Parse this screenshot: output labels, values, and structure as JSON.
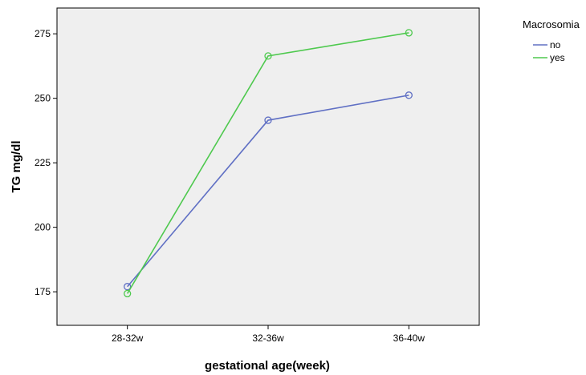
{
  "chart_data": {
    "type": "line",
    "title": "",
    "xlabel": "gestational age(week)",
    "ylabel": "TG mg/dl",
    "categories": [
      "28-32w",
      "32-36w",
      "36-40w"
    ],
    "ylim": [
      162,
      285
    ],
    "yticks": [
      175,
      200,
      225,
      250,
      275
    ],
    "grid": false,
    "legend": {
      "title": "Macrosomia",
      "placement": "top-right"
    },
    "series": [
      {
        "name": "no",
        "color": "#6070c4",
        "values": [
          177,
          241.5,
          251.2
        ]
      },
      {
        "name": "yes",
        "color": "#4ec94e",
        "values": [
          174.3,
          266.4,
          275.4
        ]
      }
    ]
  }
}
